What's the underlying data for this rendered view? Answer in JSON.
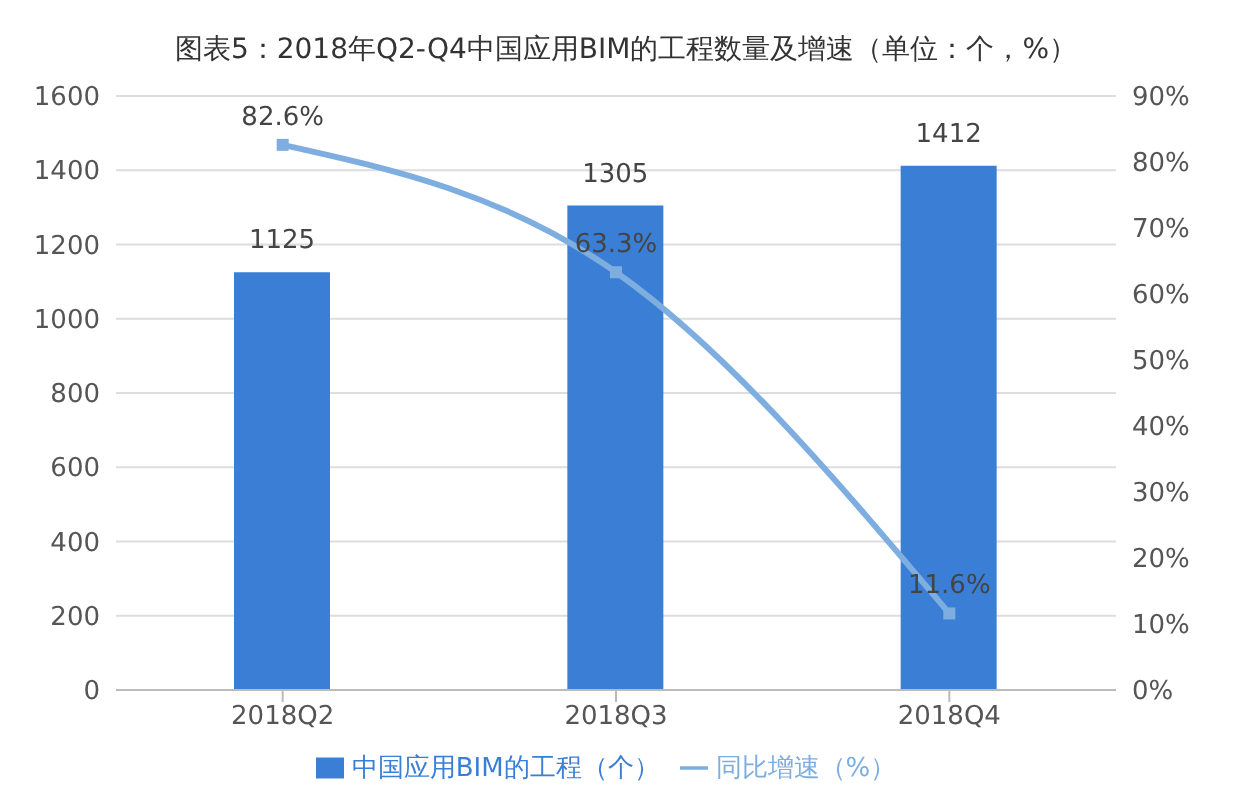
{
  "chart_data": {
    "type": "bar",
    "title": "图表5：2018年Q2-Q4中国应用BIM的工程数量及增速（单位：个，%）",
    "categories": [
      "2018Q2",
      "2018Q3",
      "2018Q4"
    ],
    "series": [
      {
        "name": "中国应用BIM的工程（个）",
        "color": "#3a7fd5",
        "values": [
          1125,
          1305,
          1412
        ]
      },
      {
        "name": "同比增速（%）",
        "type": "line",
        "axis": "y2",
        "color": "#7eaee0",
        "values": [
          82.6,
          63.3,
          11.6
        ],
        "value_labels": [
          "82.6%",
          "63.3%",
          "11.6%"
        ]
      }
    ],
    "ylim": [
      0,
      1600
    ],
    "yticks": [
      0,
      200,
      400,
      600,
      800,
      1000,
      1200,
      1400,
      1600
    ],
    "y2lim": [
      0,
      90
    ],
    "y2ticks": [
      {
        "value": 0,
        "label": "0%"
      },
      {
        "value": 10,
        "label": "10%"
      },
      {
        "value": 20,
        "label": "20%"
      },
      {
        "value": 30,
        "label": "30%"
      },
      {
        "value": 40,
        "label": "40%"
      },
      {
        "value": 50,
        "label": "50%"
      },
      {
        "value": 60,
        "label": "60%"
      },
      {
        "value": 70,
        "label": "70%"
      },
      {
        "value": 80,
        "label": "80%"
      },
      {
        "value": 90,
        "label": "90%"
      }
    ],
    "grid": "y",
    "legend": "bottom",
    "data_labels": true,
    "marker": "square"
  }
}
